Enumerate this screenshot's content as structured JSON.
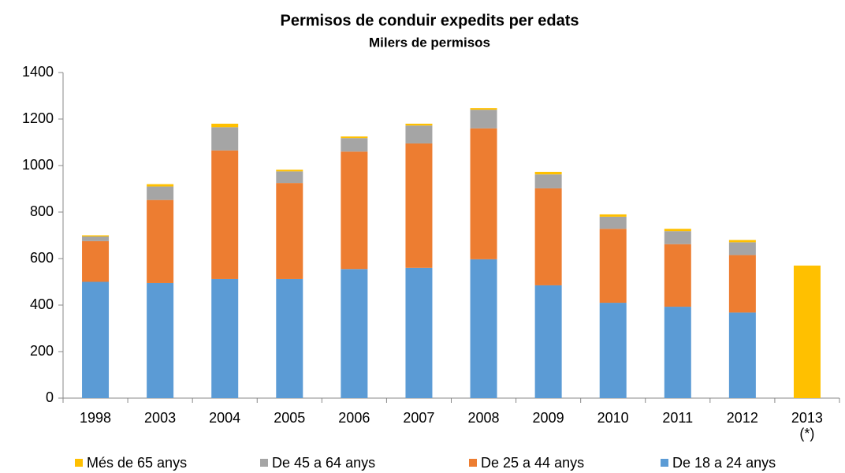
{
  "chart_data": {
    "type": "stacked_bar",
    "title": "Permisos de conduir expedits per edats",
    "subtitle": "Milers de permisos",
    "categories": [
      "1998",
      "2003",
      "2004",
      "2005",
      "2006",
      "2007",
      "2008",
      "2009",
      "2010",
      "2011",
      "2012",
      "2013\n(*)"
    ],
    "series": [
      {
        "name": "Més de 65 anys",
        "color": "#ffc000",
        "values": [
          5,
          10,
          15,
          7,
          7,
          8,
          7,
          11,
          10,
          10,
          10,
          570
        ]
      },
      {
        "name": "De 45 a 64 anys",
        "color": "#a5a5a5",
        "values": [
          20,
          58,
          100,
          50,
          58,
          77,
          80,
          60,
          52,
          56,
          55,
          null
        ]
      },
      {
        "name": "De 25 a 44 anys",
        "color": "#ed7d31",
        "values": [
          175,
          357,
          553,
          413,
          505,
          535,
          563,
          417,
          318,
          269,
          247,
          null
        ]
      },
      {
        "name": "De 18 a 24 anys",
        "color": "#5b9bd5",
        "values": [
          500,
          495,
          512,
          512,
          555,
          560,
          597,
          485,
          410,
          393,
          368,
          null
        ]
      }
    ],
    "ylim": [
      0,
      1400
    ],
    "yticks": [
      0,
      200,
      400,
      600,
      800,
      1000,
      1200,
      1400
    ],
    "grid": false
  }
}
